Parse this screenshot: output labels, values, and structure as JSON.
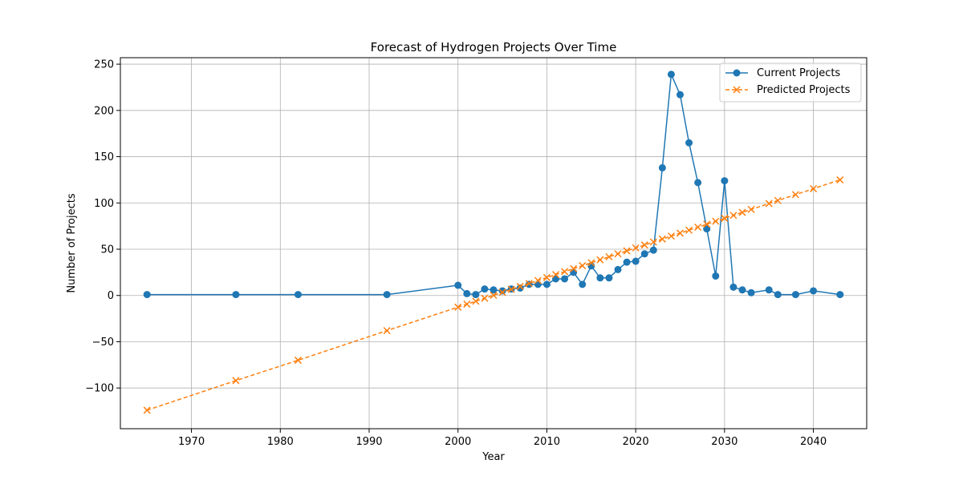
{
  "chart_data": {
    "type": "line",
    "title": "Forecast of Hydrogen Projects Over Time",
    "xlabel": "Year",
    "ylabel": "Number of Projects",
    "xlim": [
      1962,
      2046
    ],
    "ylim": [
      -144,
      257
    ],
    "xticks": [
      1970,
      1980,
      1990,
      2000,
      2010,
      2020,
      2030,
      2040
    ],
    "yticks": [
      -100,
      -50,
      0,
      50,
      100,
      150,
      200,
      250
    ],
    "ytick_labels": [
      "−100",
      "−50",
      "0",
      "50",
      "100",
      "150",
      "200",
      "250"
    ],
    "grid": true,
    "legend_position": "top-right",
    "series": [
      {
        "name": "Current Projects",
        "color": "#1f77b4",
        "line_style": "solid",
        "marker": "circle",
        "x": [
          1965,
          1975,
          1982,
          1992,
          2000,
          2001,
          2002,
          2003,
          2004,
          2005,
          2006,
          2007,
          2008,
          2009,
          2010,
          2011,
          2012,
          2013,
          2014,
          2015,
          2016,
          2017,
          2018,
          2019,
          2020,
          2021,
          2022,
          2023,
          2024,
          2025,
          2026,
          2027,
          2028,
          2029,
          2030,
          2031,
          2032,
          2033,
          2035,
          2036,
          2038,
          2040,
          2043
        ],
        "y": [
          1,
          1,
          1,
          1,
          11,
          2,
          1,
          7,
          6,
          5,
          7,
          8,
          12,
          12,
          12,
          18,
          18,
          25,
          12,
          32,
          19,
          19,
          28,
          36,
          37,
          45,
          49,
          138,
          239,
          217,
          165,
          122,
          72,
          21,
          124,
          9,
          6,
          3,
          6,
          1,
          1,
          5,
          1
        ]
      },
      {
        "name": "Predicted Projects",
        "color": "#ff7f0e",
        "line_style": "dashed",
        "marker": "x",
        "x": [
          1965,
          1975,
          1982,
          1992,
          2000,
          2001,
          2002,
          2003,
          2004,
          2005,
          2006,
          2007,
          2008,
          2009,
          2010,
          2011,
          2012,
          2013,
          2014,
          2015,
          2016,
          2017,
          2018,
          2019,
          2020,
          2021,
          2022,
          2023,
          2024,
          2025,
          2026,
          2027,
          2028,
          2029,
          2030,
          2031,
          2032,
          2033,
          2035,
          2036,
          2038,
          2040,
          2043
        ],
        "y": [
          -124,
          -92,
          -70,
          -38,
          -12.6,
          -9.4,
          -6.2,
          -3.0,
          0.2,
          3.4,
          6.6,
          9.8,
          13.0,
          16.2,
          19.4,
          22.6,
          25.8,
          29.0,
          32.2,
          35.4,
          38.6,
          41.8,
          45.0,
          48.2,
          51.4,
          54.6,
          57.8,
          61.0,
          64.2,
          67.4,
          70.6,
          73.8,
          77.0,
          80.2,
          83.4,
          86.6,
          89.8,
          93.0,
          99.4,
          102.6,
          109.0,
          115.4,
          125.0
        ]
      }
    ]
  }
}
